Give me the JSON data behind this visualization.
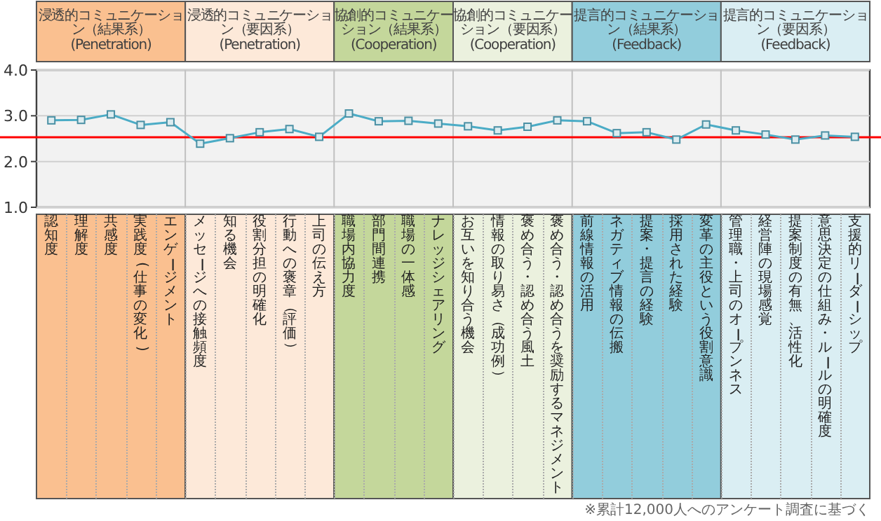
{
  "chart_data": {
    "type": "line",
    "categories": [
      "認知度",
      "理解度",
      "共感度",
      "実践度(仕事の変化)",
      "エンゲージメント",
      "メッセージへの接触頻度",
      "知る機会",
      "役割分担の明確化",
      "行動への褒章（評価）",
      "上司の伝え方",
      "職場内協力度",
      "部門間連携",
      "職場の一体感",
      "ナレッジシェアリング",
      "お互いを知り合う機会",
      "情報の取り易さ（成功例）",
      "褒め合う・認め合う風土",
      "褒め合う・認め合うを奨励するマネジメント",
      "前線情報の活用",
      "ネガティブ情報の伝搬",
      "提案・提言の経験",
      "採用された経験",
      "変革の主役という役割意識",
      "管理職・上司のオープンネス",
      "経営陣の現場感覚",
      "提案制度の有無、活性化",
      "意思決定の仕組み・ルールの明確度",
      "支援的リーダーシップ"
    ],
    "series": [
      {
        "color": "#4bacc6",
        "values": [
          2.9,
          2.91,
          3.03,
          2.8,
          2.86,
          2.39,
          2.51,
          2.64,
          2.71,
          2.54,
          3.05,
          2.88,
          2.89,
          2.83,
          2.77,
          2.68,
          2.76,
          2.9,
          2.88,
          2.62,
          2.64,
          2.48,
          2.81,
          2.68,
          2.59,
          2.48,
          2.57,
          2.54
        ]
      }
    ],
    "ylim": [
      1,
      4
    ],
    "yticks": [
      {
        "value": 1,
        "label": "1.0"
      },
      {
        "value": 2,
        "label": "2.0"
      },
      {
        "value": 3,
        "label": "3.0"
      },
      {
        "value": 4,
        "label": "4.0"
      }
    ],
    "grid": "y",
    "marker": "square",
    "line_style": "solid",
    "ref_lines": [
      {
        "axis": "y",
        "value": 2.53,
        "color": "#ff0000"
      }
    ],
    "annotations": [
      "浸透的コミュニケーション（結果系）\n(Penetration)",
      "浸透的コミュニケーション（要因系）\n(Penetration)",
      "協創的コミュニケーション（結果系）\n(Cooperation)",
      "協創的コミュニケーション（要因系）\n(Cooperation)",
      "提言的コミュニケーション（結果系）\n(Feedback)",
      "提言的コミュニケーション（要因系）\n(Feedback)",
      "※累計12,000人へのアンケート調査に基づく"
    ]
  }
}
